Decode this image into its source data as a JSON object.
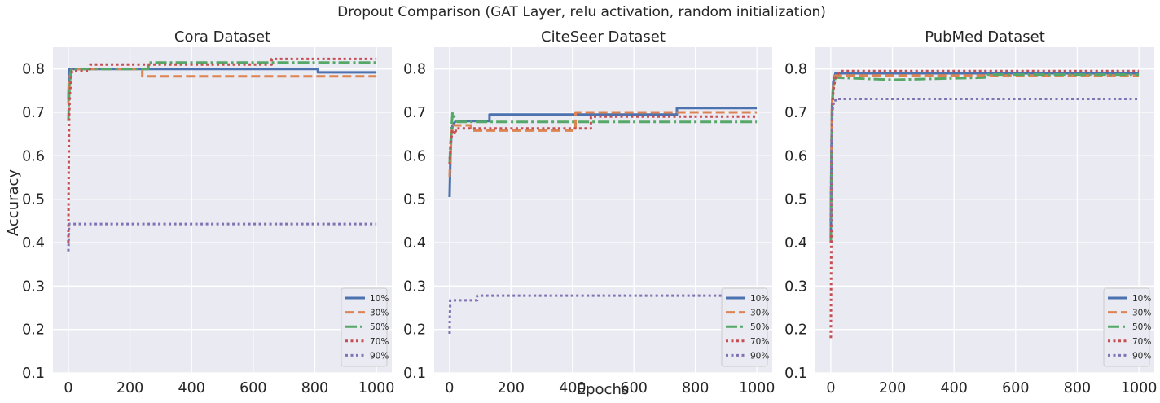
{
  "figure": {
    "suptitle": "Dropout Comparison  (GAT Layer, relu activation, random initialization)",
    "shared_xlabel": "Epochs",
    "shared_ylabel": "Accuracy"
  },
  "styles": {
    "10%": {
      "color": "#4c72b0",
      "dash": ""
    },
    "30%": {
      "color": "#dd8452",
      "dash": "11,5"
    },
    "50%": {
      "color": "#55a868",
      "dash": "14,4,3,4"
    },
    "70%": {
      "color": "#c44e52",
      "dash": "3,3.5"
    },
    "90%": {
      "color": "#8172b3",
      "dash": "3,3.5"
    }
  },
  "chart_data": [
    {
      "type": "line",
      "title": "Cora Dataset",
      "xlabel": "",
      "ylabel": "Accuracy",
      "xlim": [
        -50,
        1050
      ],
      "ylim": [
        0.1,
        0.85
      ],
      "xticks": [
        0,
        200,
        400,
        600,
        800,
        1000
      ],
      "yticks": [
        0.1,
        0.2,
        0.3,
        0.4,
        0.5,
        0.6,
        0.7,
        0.8
      ],
      "grid": true,
      "legend": "bottom-right",
      "series": [
        {
          "name": "10%",
          "x": [
            0,
            2,
            4,
            6,
            810,
            810,
            1000
          ],
          "y": [
            0.73,
            0.78,
            0.8,
            0.8,
            0.8,
            0.792,
            0.792
          ]
        },
        {
          "name": "30%",
          "x": [
            0,
            2,
            4,
            8,
            12,
            240,
            240,
            1000
          ],
          "y": [
            0.72,
            0.76,
            0.78,
            0.79,
            0.8,
            0.8,
            0.783,
            0.783
          ]
        },
        {
          "name": "50%",
          "x": [
            0,
            2,
            5,
            10,
            260,
            260,
            1000
          ],
          "y": [
            0.68,
            0.73,
            0.77,
            0.8,
            0.8,
            0.815,
            0.815
          ]
        },
        {
          "name": "70%",
          "x": [
            0,
            1,
            2,
            3,
            5,
            8,
            12,
            60,
            60,
            70,
            70,
            660,
            660,
            1000
          ],
          "y": [
            0.4,
            0.55,
            0.65,
            0.7,
            0.74,
            0.77,
            0.795,
            0.795,
            0.8,
            0.8,
            0.81,
            0.81,
            0.823,
            0.823
          ]
        },
        {
          "name": "90%",
          "x": [
            0,
            1,
            2,
            2,
            1000
          ],
          "y": [
            0.38,
            0.4,
            0.43,
            0.443,
            0.443
          ]
        }
      ]
    },
    {
      "type": "line",
      "title": "CiteSeer Dataset",
      "xlabel": "Epochs",
      "ylabel": "",
      "xlim": [
        -50,
        1050
      ],
      "ylim": [
        0.1,
        0.85
      ],
      "xticks": [
        0,
        200,
        400,
        600,
        800,
        1000
      ],
      "yticks": [
        0.1,
        0.2,
        0.3,
        0.4,
        0.5,
        0.6,
        0.7,
        0.8
      ],
      "grid": true,
      "legend": "bottom-right",
      "series": [
        {
          "name": "10%",
          "x": [
            0,
            3,
            6,
            10,
            20,
            130,
            130,
            740,
            740,
            1000
          ],
          "y": [
            0.505,
            0.6,
            0.65,
            0.67,
            0.68,
            0.68,
            0.695,
            0.695,
            0.71,
            0.71
          ]
        },
        {
          "name": "30%",
          "x": [
            0,
            3,
            6,
            10,
            20,
            70,
            70,
            410,
            410,
            1000
          ],
          "y": [
            0.55,
            0.61,
            0.65,
            0.67,
            0.67,
            0.67,
            0.658,
            0.658,
            0.7,
            0.7
          ]
        },
        {
          "name": "50%",
          "x": [
            0,
            3,
            6,
            10,
            15,
            25,
            1000
          ],
          "y": [
            0.58,
            0.63,
            0.66,
            0.7,
            0.69,
            0.678,
            0.678
          ]
        },
        {
          "name": "70%",
          "x": [
            0,
            3,
            6,
            10,
            20,
            20,
            460,
            460,
            1000
          ],
          "y": [
            0.58,
            0.62,
            0.64,
            0.66,
            0.65,
            0.663,
            0.663,
            0.69,
            0.69
          ]
        },
        {
          "name": "90%",
          "x": [
            0,
            1,
            2,
            2,
            90,
            90,
            1000
          ],
          "y": [
            0.19,
            0.23,
            0.25,
            0.267,
            0.267,
            0.278,
            0.278
          ]
        }
      ]
    },
    {
      "type": "line",
      "title": "PubMed Dataset",
      "xlabel": "",
      "ylabel": "",
      "xlim": [
        -50,
        1050
      ],
      "ylim": [
        0.1,
        0.85
      ],
      "xticks": [
        0,
        200,
        400,
        600,
        800,
        1000
      ],
      "yticks": [
        0.1,
        0.2,
        0.3,
        0.4,
        0.5,
        0.6,
        0.7,
        0.8
      ],
      "grid": true,
      "legend": "bottom-right",
      "series": [
        {
          "name": "10%",
          "x": [
            0,
            2,
            4,
            8,
            15,
            1000
          ],
          "y": [
            0.41,
            0.6,
            0.72,
            0.77,
            0.79,
            0.79
          ]
        },
        {
          "name": "30%",
          "x": [
            0,
            2,
            4,
            8,
            15,
            1000
          ],
          "y": [
            0.45,
            0.62,
            0.72,
            0.76,
            0.785,
            0.785
          ]
        },
        {
          "name": "50%",
          "x": [
            0,
            2,
            4,
            8,
            15,
            200,
            500,
            500,
            1000
          ],
          "y": [
            0.4,
            0.6,
            0.7,
            0.76,
            0.78,
            0.775,
            0.78,
            0.787,
            0.787
          ]
        },
        {
          "name": "70%",
          "x": [
            0,
            2,
            4,
            8,
            15,
            30,
            1000
          ],
          "y": [
            0.18,
            0.5,
            0.68,
            0.75,
            0.78,
            0.795,
            0.795
          ]
        },
        {
          "name": "90%",
          "x": [
            0,
            2,
            5,
            8,
            15,
            15,
            1000
          ],
          "y": [
            0.45,
            0.62,
            0.7,
            0.72,
            0.72,
            0.731,
            0.731
          ]
        }
      ]
    }
  ]
}
